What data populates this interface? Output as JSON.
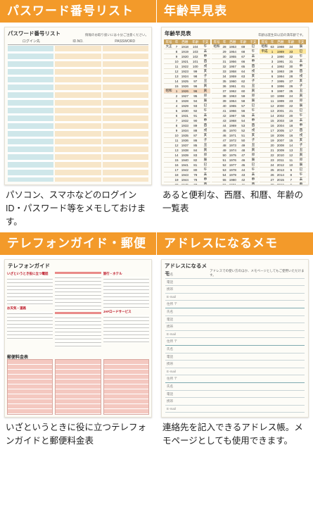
{
  "cards": [
    {
      "title": "パスワード番号リスト",
      "caption": "パソコン、スマホなどのログインID・パスワード等をメモしておけます。"
    },
    {
      "title": "年齢早見表",
      "caption": "あると便利な、西暦、和暦、年齢の一覧表"
    },
    {
      "title": "テレフォンガイド・郵便料金表",
      "caption": "いざというときに役に立つテレフォンガイドと郵便料金表"
    },
    {
      "title": "アドレスになるメモ",
      "caption": "連絡先を記入できるアドレス帳。メモページとしても使用できます。"
    }
  ],
  "password_page": {
    "title": "パスワード番号リスト",
    "note": "情報のお取り扱いには十分ご注意ください。",
    "columns": [
      "ログイン先",
      "ID.NO.",
      "PASSWORD"
    ]
  },
  "age_page": {
    "title": "年齢早見表",
    "note": "年齢は誕生日以前の満年齢です。",
    "headers": [
      "年号",
      "年",
      "西暦",
      "年齢",
      "干支"
    ],
    "left": [
      [
        "大正",
        "7",
        "1918",
        "104",
        "午"
      ],
      [
        "",
        "8",
        "1919",
        "103",
        "未"
      ],
      [
        "",
        "9",
        "1920",
        "102",
        "申"
      ],
      [
        "",
        "10",
        "1921",
        "101",
        "酉"
      ],
      [
        "",
        "11",
        "1922",
        "100",
        "戌"
      ],
      [
        "",
        "12",
        "1923",
        "99",
        "亥"
      ],
      [
        "",
        "13",
        "1924",
        "98",
        "子"
      ],
      [
        "",
        "14",
        "1925",
        "97",
        "丑"
      ],
      [
        "",
        "15",
        "1926",
        "96",
        "寅"
      ],
      [
        "昭和",
        "1",
        "1926",
        "96",
        "寅"
      ],
      [
        "",
        "2",
        "1927",
        "95",
        "卯"
      ],
      [
        "",
        "3",
        "1928",
        "94",
        "辰"
      ],
      [
        "",
        "4",
        "1929",
        "93",
        "巳"
      ],
      [
        "",
        "5",
        "1930",
        "92",
        "午"
      ],
      [
        "",
        "6",
        "1931",
        "91",
        "未"
      ],
      [
        "",
        "7",
        "1932",
        "90",
        "申"
      ],
      [
        "",
        "8",
        "1933",
        "89",
        "酉"
      ],
      [
        "",
        "9",
        "1934",
        "88",
        "戌"
      ],
      [
        "",
        "10",
        "1935",
        "87",
        "亥"
      ],
      [
        "",
        "11",
        "1936",
        "86",
        "子"
      ],
      [
        "",
        "12",
        "1937",
        "85",
        "丑"
      ],
      [
        "",
        "13",
        "1938",
        "84",
        "寅"
      ],
      [
        "",
        "14",
        "1939",
        "83",
        "卯"
      ],
      [
        "",
        "15",
        "1940",
        "82",
        "辰"
      ],
      [
        "",
        "16",
        "1941",
        "81",
        "巳"
      ],
      [
        "",
        "17",
        "1942",
        "80",
        "午"
      ],
      [
        "",
        "18",
        "1943",
        "79",
        "未"
      ],
      [
        "",
        "19",
        "1944",
        "78",
        "申"
      ],
      [
        "",
        "20",
        "1945",
        "77",
        "酉"
      ],
      [
        "",
        "21",
        "1946",
        "76",
        "戌"
      ],
      [
        "",
        "22",
        "1947",
        "75",
        "亥"
      ],
      [
        "",
        "23",
        "1948",
        "74",
        "子"
      ],
      [
        "",
        "24",
        "1949",
        "73",
        "丑"
      ],
      [
        "",
        "25",
        "1950",
        "72",
        "寅"
      ],
      [
        "",
        "26",
        "1951",
        "71",
        "卯"
      ],
      [
        "",
        "27",
        "1952",
        "70",
        "辰"
      ]
    ],
    "middle": [
      [
        "昭和",
        "28",
        "1953",
        "69",
        "巳"
      ],
      [
        "",
        "29",
        "1954",
        "68",
        "午"
      ],
      [
        "",
        "30",
        "1955",
        "67",
        "未"
      ],
      [
        "",
        "31",
        "1956",
        "66",
        "申"
      ],
      [
        "",
        "32",
        "1957",
        "65",
        "酉"
      ],
      [
        "",
        "33",
        "1958",
        "64",
        "戌"
      ],
      [
        "",
        "34",
        "1959",
        "63",
        "亥"
      ],
      [
        "",
        "35",
        "1960",
        "62",
        "子"
      ],
      [
        "",
        "36",
        "1961",
        "61",
        "丑"
      ],
      [
        "",
        "37",
        "1962",
        "60",
        "寅"
      ],
      [
        "",
        "38",
        "1963",
        "59",
        "卯"
      ],
      [
        "",
        "39",
        "1964",
        "58",
        "辰"
      ],
      [
        "",
        "40",
        "1965",
        "57",
        "巳"
      ],
      [
        "",
        "41",
        "1966",
        "56",
        "午"
      ],
      [
        "",
        "42",
        "1967",
        "55",
        "未"
      ],
      [
        "",
        "43",
        "1968",
        "54",
        "申"
      ],
      [
        "",
        "44",
        "1969",
        "53",
        "酉"
      ],
      [
        "",
        "45",
        "1970",
        "52",
        "戌"
      ],
      [
        "",
        "46",
        "1971",
        "51",
        "亥"
      ],
      [
        "",
        "47",
        "1972",
        "50",
        "子"
      ],
      [
        "",
        "48",
        "1973",
        "49",
        "丑"
      ],
      [
        "",
        "49",
        "1974",
        "48",
        "寅"
      ],
      [
        "",
        "50",
        "1975",
        "47",
        "卯"
      ],
      [
        "",
        "51",
        "1976",
        "46",
        "辰"
      ],
      [
        "",
        "52",
        "1977",
        "45",
        "巳"
      ],
      [
        "",
        "53",
        "1978",
        "44",
        "午"
      ],
      [
        "",
        "54",
        "1979",
        "43",
        "未"
      ],
      [
        "",
        "55",
        "1980",
        "42",
        "申"
      ],
      [
        "",
        "56",
        "1981",
        "41",
        "酉"
      ],
      [
        "",
        "57",
        "1982",
        "40",
        "戌"
      ],
      [
        "",
        "58",
        "1983",
        "39",
        "亥"
      ],
      [
        "",
        "59",
        "1984",
        "38",
        "子"
      ],
      [
        "",
        "60",
        "1985",
        "37",
        "丑"
      ],
      [
        "",
        "61",
        "1986",
        "36",
        "寅"
      ],
      [
        "",
        "62",
        "1987",
        "35",
        "卯"
      ],
      [
        "",
        "63",
        "1988",
        "34",
        "辰"
      ]
    ],
    "right": [
      [
        "昭和",
        "63",
        "1988",
        "34",
        "辰"
      ],
      [
        "平成",
        "1",
        "1989",
        "33",
        "巳"
      ],
      [
        "",
        "2",
        "1990",
        "32",
        "午"
      ],
      [
        "",
        "3",
        "1991",
        "31",
        "未"
      ],
      [
        "",
        "4",
        "1992",
        "30",
        "申"
      ],
      [
        "",
        "5",
        "1993",
        "29",
        "酉"
      ],
      [
        "",
        "6",
        "1994",
        "28",
        "戌"
      ],
      [
        "",
        "7",
        "1995",
        "27",
        "亥"
      ],
      [
        "",
        "8",
        "1996",
        "26",
        "子"
      ],
      [
        "",
        "9",
        "1997",
        "25",
        "丑"
      ],
      [
        "",
        "10",
        "1998",
        "24",
        "寅"
      ],
      [
        "",
        "11",
        "1999",
        "23",
        "卯"
      ],
      [
        "",
        "12",
        "2000",
        "22",
        "辰"
      ],
      [
        "",
        "13",
        "2001",
        "21",
        "巳"
      ],
      [
        "",
        "14",
        "2002",
        "20",
        "午"
      ],
      [
        "",
        "15",
        "2003",
        "19",
        "未"
      ],
      [
        "",
        "16",
        "2004",
        "18",
        "申"
      ],
      [
        "",
        "17",
        "2005",
        "17",
        "酉"
      ],
      [
        "",
        "18",
        "2006",
        "16",
        "戌"
      ],
      [
        "",
        "19",
        "2007",
        "15",
        "亥"
      ],
      [
        "",
        "20",
        "2008",
        "14",
        "子"
      ],
      [
        "",
        "21",
        "2009",
        "13",
        "丑"
      ],
      [
        "",
        "22",
        "2010",
        "12",
        "寅"
      ],
      [
        "",
        "23",
        "2011",
        "11",
        "卯"
      ],
      [
        "",
        "24",
        "2012",
        "10",
        "辰"
      ],
      [
        "",
        "25",
        "2013",
        "9",
        "巳"
      ],
      [
        "",
        "26",
        "2014",
        "8",
        "午"
      ],
      [
        "",
        "27",
        "2015",
        "7",
        "未"
      ],
      [
        "",
        "28",
        "2016",
        "6",
        "申"
      ],
      [
        "",
        "29",
        "2017",
        "5",
        "酉"
      ],
      [
        "",
        "30",
        "2018",
        "4",
        "戌"
      ],
      [
        "令和",
        "1",
        "2019",
        "3",
        "亥"
      ],
      [
        "",
        "2",
        "2020",
        "2",
        "子"
      ],
      [
        "",
        "3",
        "2021",
        "1",
        "丑"
      ],
      [
        "",
        "4",
        "2022",
        "0",
        "寅"
      ],
      [
        "",
        "",
        "",
        "",
        ""
      ]
    ]
  },
  "phone_page": {
    "title": "テレフォンガイド",
    "sections": [
      "いざというとき役に立つ電話",
      "お天気・道路",
      "旅行・ホテル",
      "JAFロードサービス",
      "郵便料金表"
    ],
    "rate_title": "郵便料金表"
  },
  "address_page": {
    "title": "アドレスになるメモ",
    "note": "アドレスでの使い方のほか、メモページとしてもご使用いただけます。",
    "labels": [
      "氏名",
      "電話",
      "携帯",
      "E-mail",
      "住所 〒"
    ]
  }
}
